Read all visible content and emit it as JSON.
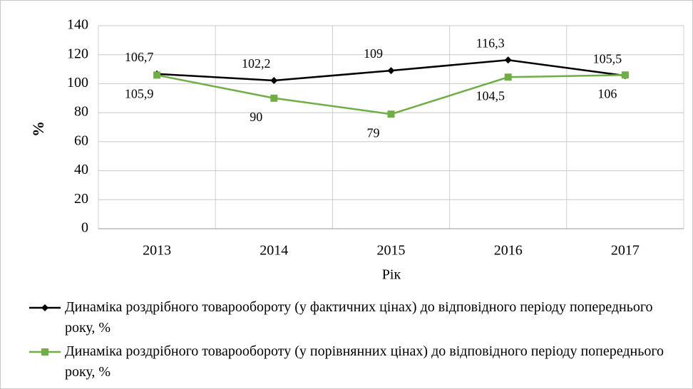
{
  "chart_data": {
    "type": "line",
    "categories": [
      "2013",
      "2014",
      "2015",
      "2016",
      "2017"
    ],
    "series": [
      {
        "name": "Динаміка роздрібного товарообороту (у фактичних цінах) до відповідного періоду попереднього року, %",
        "color": "#000000",
        "marker": "diamond",
        "values": [
          106.7,
          102.2,
          109,
          116.3,
          105.5
        ],
        "value_labels": [
          "106,7",
          "102,2",
          "109",
          "116,3",
          "105,5"
        ]
      },
      {
        "name": "Динаміка роздрібного товарообороту (у порівнянних цінах) до відповідного періоду попереднього року, %",
        "color": "#70ad47",
        "marker": "square",
        "values": [
          105.9,
          90,
          79,
          104.5,
          106
        ],
        "value_labels": [
          "105,9",
          "90",
          "79",
          "104,5",
          "106"
        ]
      }
    ],
    "xlabel": "Рік",
    "ylabel": "%",
    "ylim": [
      0,
      140
    ],
    "yticks": [
      0,
      20,
      40,
      60,
      80,
      100,
      120,
      140
    ],
    "grid": true
  }
}
